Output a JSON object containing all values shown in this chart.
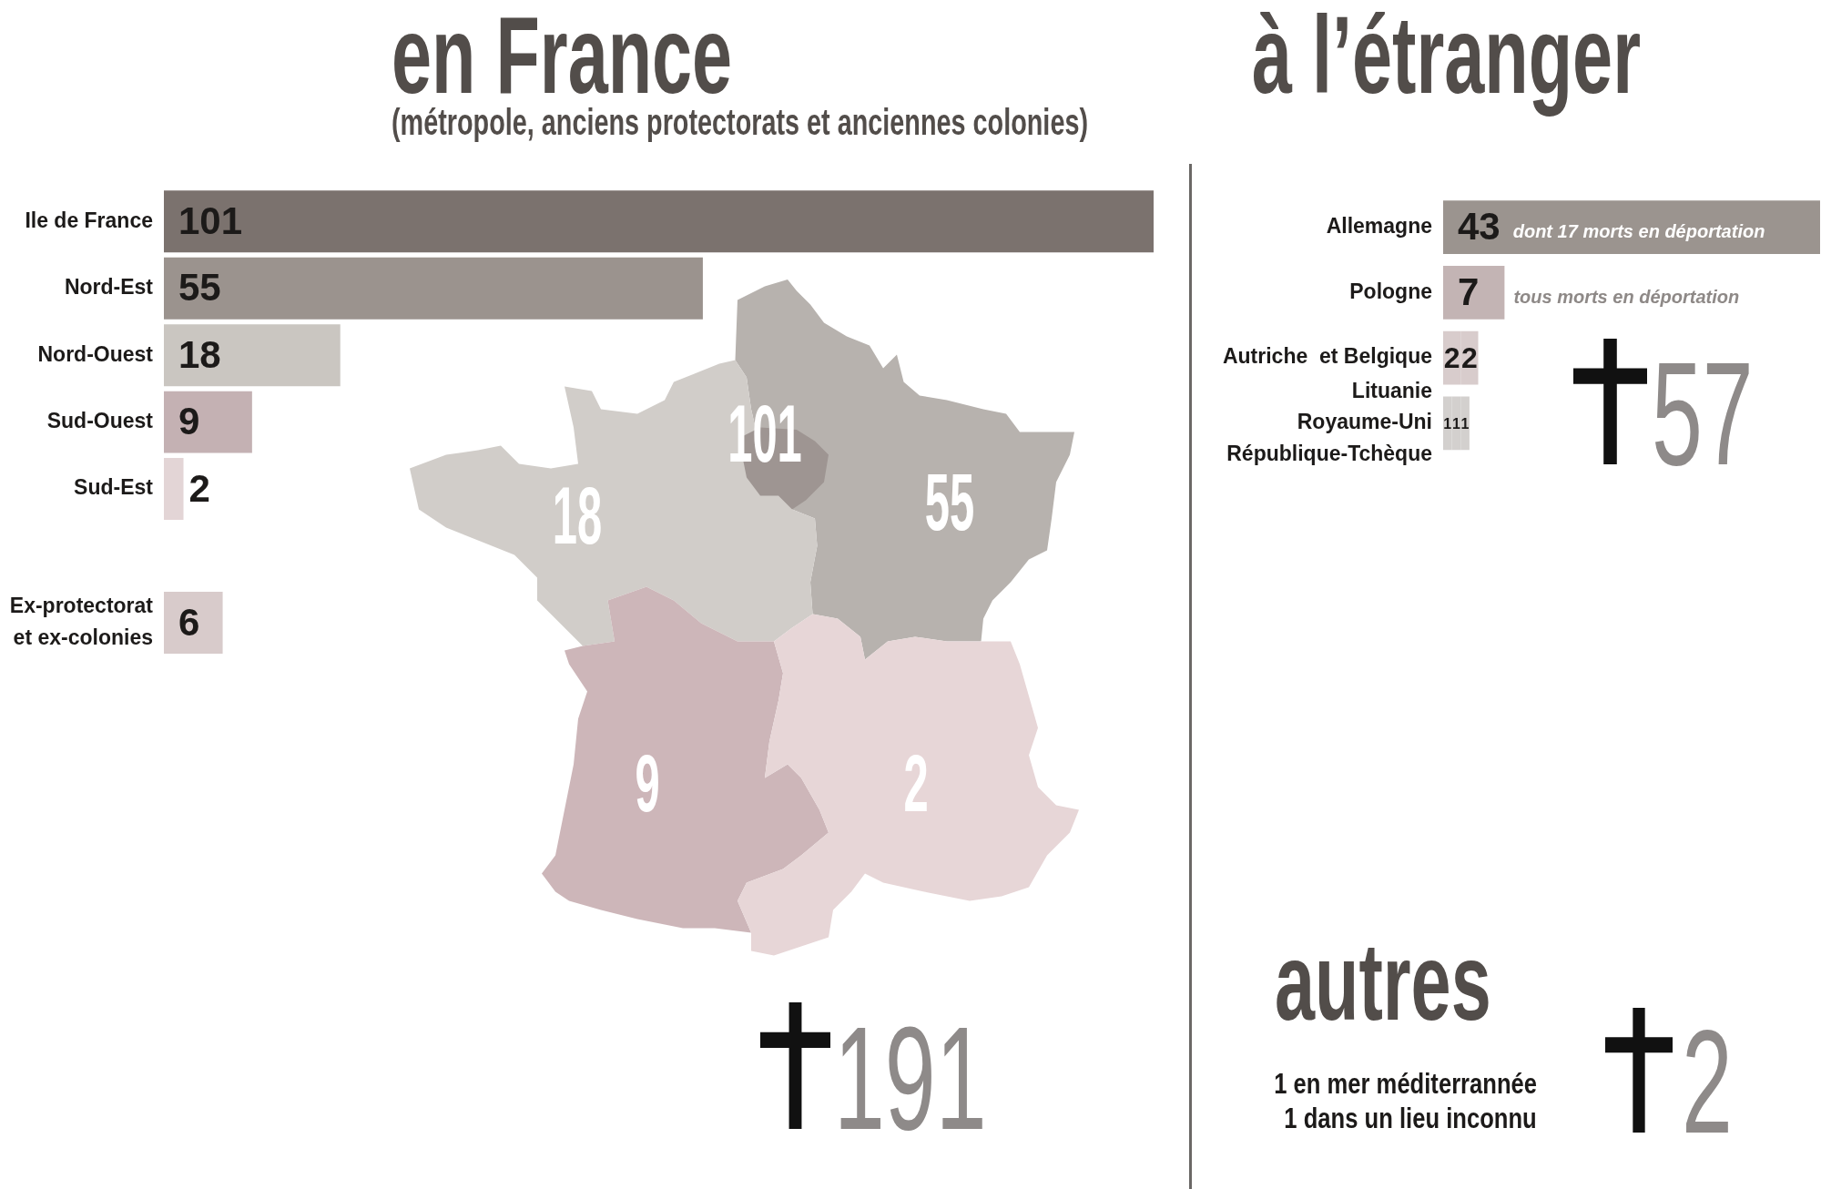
{
  "chart_data": [
    {
      "type": "bar",
      "orientation": "horizontal",
      "title": "en France",
      "subtitle": "(métropole, anciens protectorats et anciennes colonies)",
      "categories": [
        "Ile de France",
        "Nord-Est",
        "Nord-Ouest",
        "Sud-Ouest",
        "Sud-Est",
        null,
        "Ex-protectorat\net ex-colonies"
      ],
      "values": [
        101,
        55,
        18,
        9,
        2,
        null,
        6
      ],
      "colors": [
        "#7b726e",
        "#9b938e",
        "#cac6c1",
        "#c4b1b3",
        "#e3d5d6",
        null,
        "#d8cbcb"
      ],
      "data_labels": true,
      "tick_labels": "y",
      "annotations": [
        "191"
      ]
    },
    {
      "type": "other",
      "annotations": [
        "101",
        "55",
        "18",
        "9",
        "2"
      ]
    },
    {
      "type": "bar",
      "orientation": "horizontal",
      "stacked": true,
      "title": "à l’étranger",
      "categories": [
        "Allemagne",
        "Pologne",
        "Autriche  et Belgique",
        "Lituanie\nRoyaume-Uni\nRépublique-Tchèque"
      ],
      "series": [
        {
          "values": [
            43,
            7,
            2,
            1
          ],
          "colors": [
            "#9b948f",
            "#c3b4b4",
            "#d8cccc",
            "#d3d0ce"
          ]
        },
        {
          "values": [
            null,
            null,
            2,
            1
          ],
          "colors": [
            null,
            null,
            "#d8cccc",
            "#d3d0ce"
          ]
        },
        {
          "values": [
            null,
            null,
            null,
            1
          ],
          "colors": [
            null,
            null,
            null,
            "#d3d0ce"
          ]
        }
      ],
      "data_labels": true,
      "tick_labels": "y",
      "annotations": [
        "dont 17 morts en déportation",
        "tous morts en déportation",
        "57"
      ]
    },
    {
      "type": "other",
      "title": "autres",
      "annotations": [
        "1 en mer méditerrannée",
        "1 dans un lieu inconnu",
        "2"
      ]
    }
  ]
}
